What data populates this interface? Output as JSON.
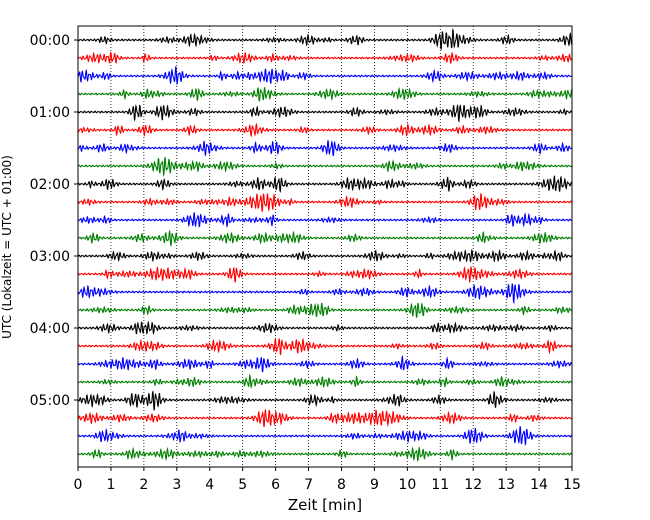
{
  "chart_data": {
    "type": "line",
    "title": "",
    "xlabel": "Zeit  [min]",
    "ylabel": "UTC (Lokalzeit = UTC + 01:00)",
    "xlim": [
      0,
      15
    ],
    "xticks": [
      "0",
      "1",
      "2",
      "3",
      "4",
      "5",
      "6",
      "7",
      "8",
      "9",
      "10",
      "11",
      "12",
      "13",
      "14",
      "15"
    ],
    "ytick_labels": [
      "00:00",
      "01:00",
      "02:00",
      "03:00",
      "04:00",
      "05:00"
    ],
    "rows_per_hour": 4,
    "row_count": 24,
    "trace_colors": [
      "#000000",
      "#ff0000",
      "#0000ff",
      "#008000"
    ],
    "grid": "vertical-dotted",
    "legend": "none"
  }
}
